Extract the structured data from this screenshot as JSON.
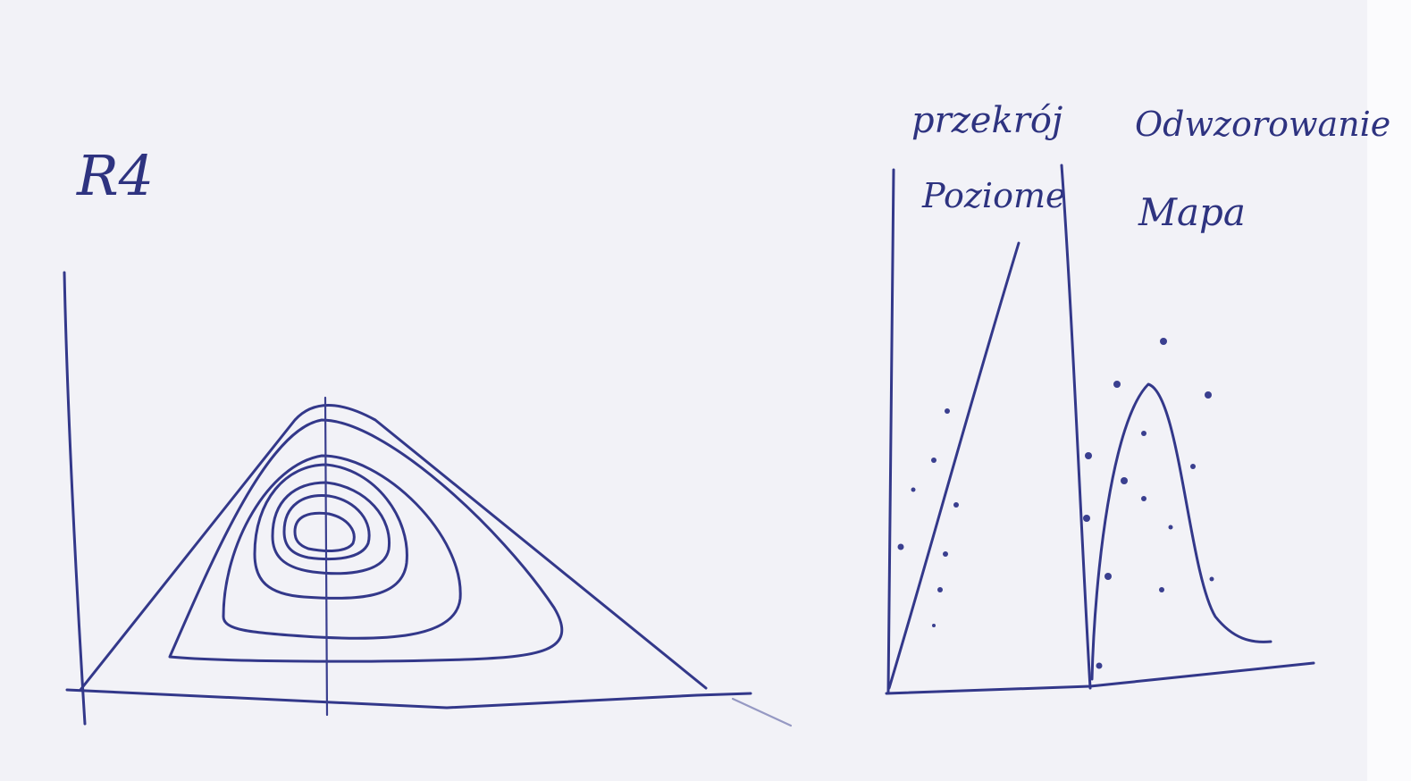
{
  "sketch": {
    "title": "R4",
    "section_title": "przekrój",
    "section_subtitle": "Poziome",
    "mapping_title": "Odwzorowanie",
    "mapping_subtitle": "Mapa"
  }
}
